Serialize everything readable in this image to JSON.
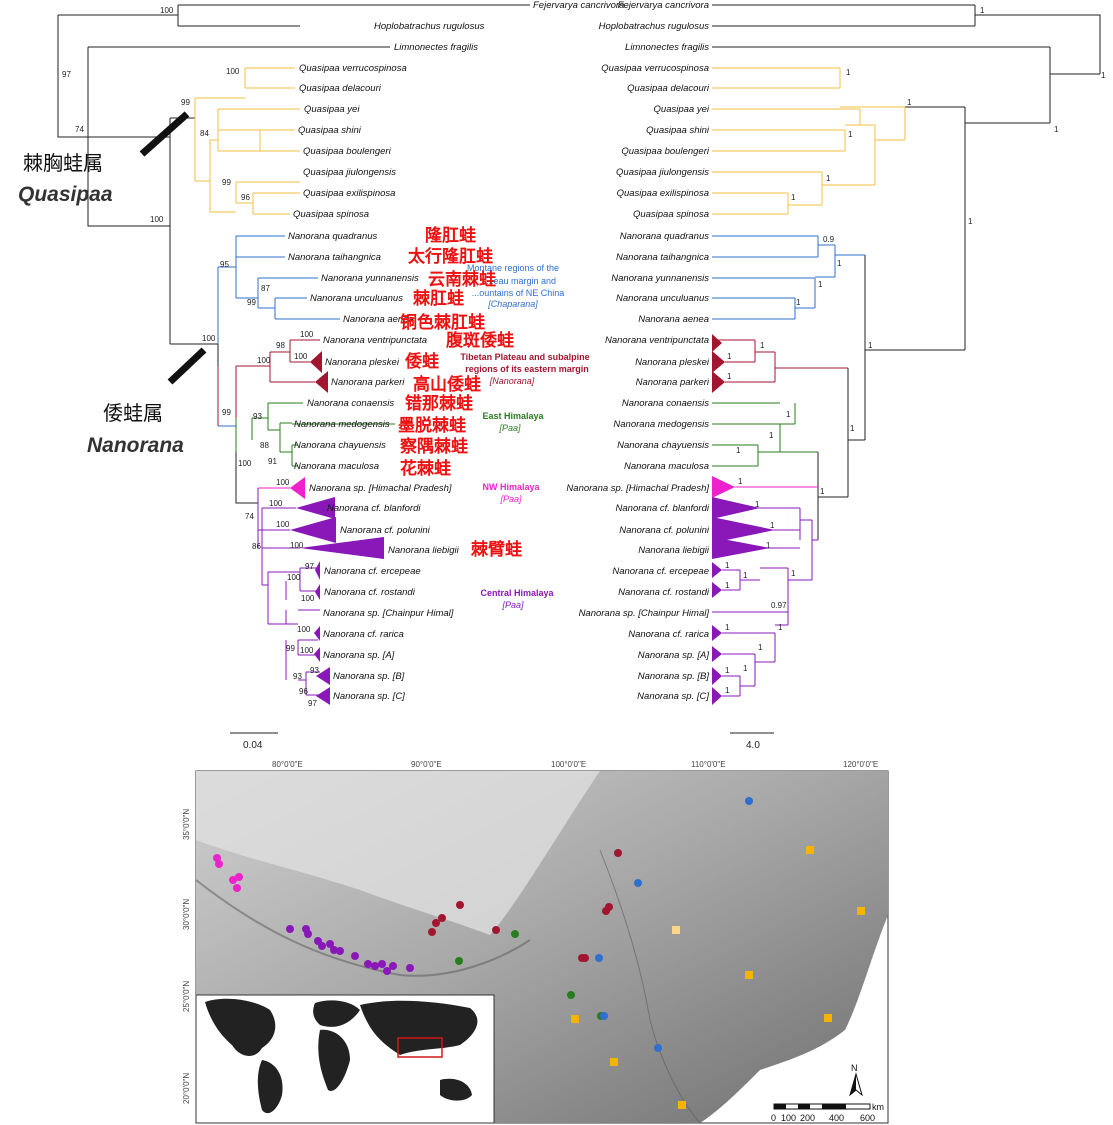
{
  "left_tree": {
    "taxa": [
      {
        "name": "Fejervarya cancrivora"
      },
      {
        "name": "Hoplobatrachus rugulosus"
      },
      {
        "name": "Limnonectes fragilis"
      },
      {
        "name": "Quasipaa verrucospinosa"
      },
      {
        "name": "Quasipaa delacouri"
      },
      {
        "name": "Quasipaa yei"
      },
      {
        "name": "Quasipaa shini"
      },
      {
        "name": "Quasipaa boulengeri"
      },
      {
        "name": "Quasipaa jiulongensis"
      },
      {
        "name": "Quasipaa exilispinosa"
      },
      {
        "name": "Quasipaa spinosa"
      },
      {
        "name": "Nanorana quadranus",
        "cn": "隆肛蛙"
      },
      {
        "name": "Nanorana taihangnica",
        "cn": "太行隆肛蛙"
      },
      {
        "name": "Nanorana yunnanensis",
        "cn": "云南棘蛙"
      },
      {
        "name": "Nanorana unculuanus",
        "cn": "棘肛蛙"
      },
      {
        "name": "Nanorana aenea",
        "cn": "铜色棘肛蛙"
      },
      {
        "name": "Nanorana ventripunctata",
        "cn": "腹斑倭蛙"
      },
      {
        "name": "Nanorana pleskei",
        "cn": "倭蛙"
      },
      {
        "name": "Nanorana parkeri",
        "cn": "高山倭蛙"
      },
      {
        "name": "Nanorana conaensis",
        "cn": "错那棘蛙"
      },
      {
        "name": "Nanorana medogensis",
        "cn": "墨脱棘蛙"
      },
      {
        "name": "Nanorana chayuensis",
        "cn": "察隅棘蛙"
      },
      {
        "name": "Nanorana maculosa",
        "cn": "花棘蛙"
      },
      {
        "name": "Nanorana sp. [Himachal Pradesh]"
      },
      {
        "name": "Nanorana cf. blanfordi"
      },
      {
        "name": "Nanorana cf. polunini"
      },
      {
        "name": "Nanorana liebigii",
        "cn": "棘臂蛙"
      },
      {
        "name": "Nanorana cf. ercepeae"
      },
      {
        "name": "Nanorana cf. rostandi"
      },
      {
        "name": "Nanorana sp. [Chainpur Himal]"
      },
      {
        "name": "Nanorana cf. rarica"
      },
      {
        "name": "Nanorana sp. [A]"
      },
      {
        "name": "Nanorana sp. [B]"
      },
      {
        "name": "Nanorana sp. [C]"
      }
    ],
    "support": {
      "fejer_hoplo": "100",
      "outer": "97",
      "ingroup": "74",
      "quasipaa": "99",
      "verr_dela": "100",
      "yei_group": "84",
      "jiulong_group": "99",
      "exil_spin": "96",
      "genus_split": "100",
      "nanorana": "100",
      "chaparana": "95",
      "yun_group": "87",
      "uncu_aenea": "99",
      "tibet_group": "100",
      "vent_pleskei": "98",
      "pleskei": "100",
      "parkeri": "100",
      "himalaya": "99",
      "east_hima": "93",
      "medog_group": "88",
      "chay_mac": "91",
      "nw_rest": "100",
      "himachal": "100",
      "blanfordi": "100",
      "polunini": "100",
      "liebigii": "100",
      "central_pair": "74",
      "central": "86",
      "erce_rost": "100",
      "ercepeae": "97",
      "rostandi": "100",
      "rarica_group": "99",
      "rarica": "100",
      "sp_a": "100",
      "sp_bc": "93",
      "sp_b": "93",
      "sp_c_pair": "96",
      "sp_c": "97"
    },
    "scale_label": "0.04"
  },
  "right_tree": {
    "support": {
      "fejer_hoplo": "1",
      "outer": "1",
      "ingroup": "1",
      "verr_dela": "1",
      "quasipaa": "1",
      "shini_boul": "1",
      "jiulong_group": "1",
      "exil_spin": "1",
      "genus_split": "1",
      "quad_taih": "0.9",
      "chaparana": "1",
      "yun_group": "1",
      "uncu_aenea": "1",
      "tibet": "1",
      "vent": "1",
      "pleskei": "1",
      "parkeri": "1",
      "himalaya": "1",
      "east": "1",
      "medog": "1",
      "chay_mac": "1",
      "nw": "1",
      "himachal": "1",
      "blanfordi": "1",
      "polunini": "1",
      "liebigii": "1",
      "central": "1",
      "erce_rost": "1",
      "ercepeae": "1",
      "rostandi": "1",
      "chainpur": "0.97",
      "rarica_group": "1",
      "rarica": "1",
      "sp_a": "1",
      "sp_bc": "1",
      "sp_b": "1",
      "sp_c": "1"
    },
    "scale_label": "4.0"
  },
  "genus_labels": {
    "quasipaa_cn": "棘胸蛙属",
    "quasipaa_lat": "Quasipaa",
    "nanorana_cn": "倭蛙属",
    "nanorana_lat": "Nanorana"
  },
  "clade_labels": {
    "chaparana": {
      "line1": "Montane regions of the",
      "line2": "...eau margin and",
      "line3": "...ountains of NE China",
      "tag": "[Chaparana]"
    },
    "tibet": {
      "line1": "Tibetan Plateau and subalpine",
      "line2": "regions of its eastern margin",
      "tag": "[Nanorana]"
    },
    "east": {
      "line1": "East Himalaya",
      "tag": "[Paa]"
    },
    "nw": {
      "line1": "NW Himalaya",
      "tag": "[Paa]"
    },
    "central": {
      "line1": "Central Himalaya",
      "tag": "[Paa]"
    }
  },
  "map": {
    "lon_labels": [
      "80°0'0\"E",
      "90°0'0\"E",
      "100°0'0\"E",
      "110°0'0\"E",
      "120°0'0\"E"
    ],
    "lat_labels": [
      "35°0'0\"N",
      "30°0'0\"N",
      "25°0'0\"N",
      "20°0'0\"N"
    ],
    "north_label": "N",
    "scale_labels": [
      "0",
      "100",
      "200",
      "400",
      "600"
    ],
    "scale_unit": "km"
  },
  "colors": {
    "outgroup": "#222222",
    "quasipaa": "#f5c242",
    "chaparana": "#2f6fcf",
    "nanorana": "#a3162f",
    "east_himalaya": "#2a7d1f",
    "nw_himalaya": "#ee22cc",
    "central_himalaya": "#8a18b8",
    "chinese_label": "#ee1111"
  }
}
